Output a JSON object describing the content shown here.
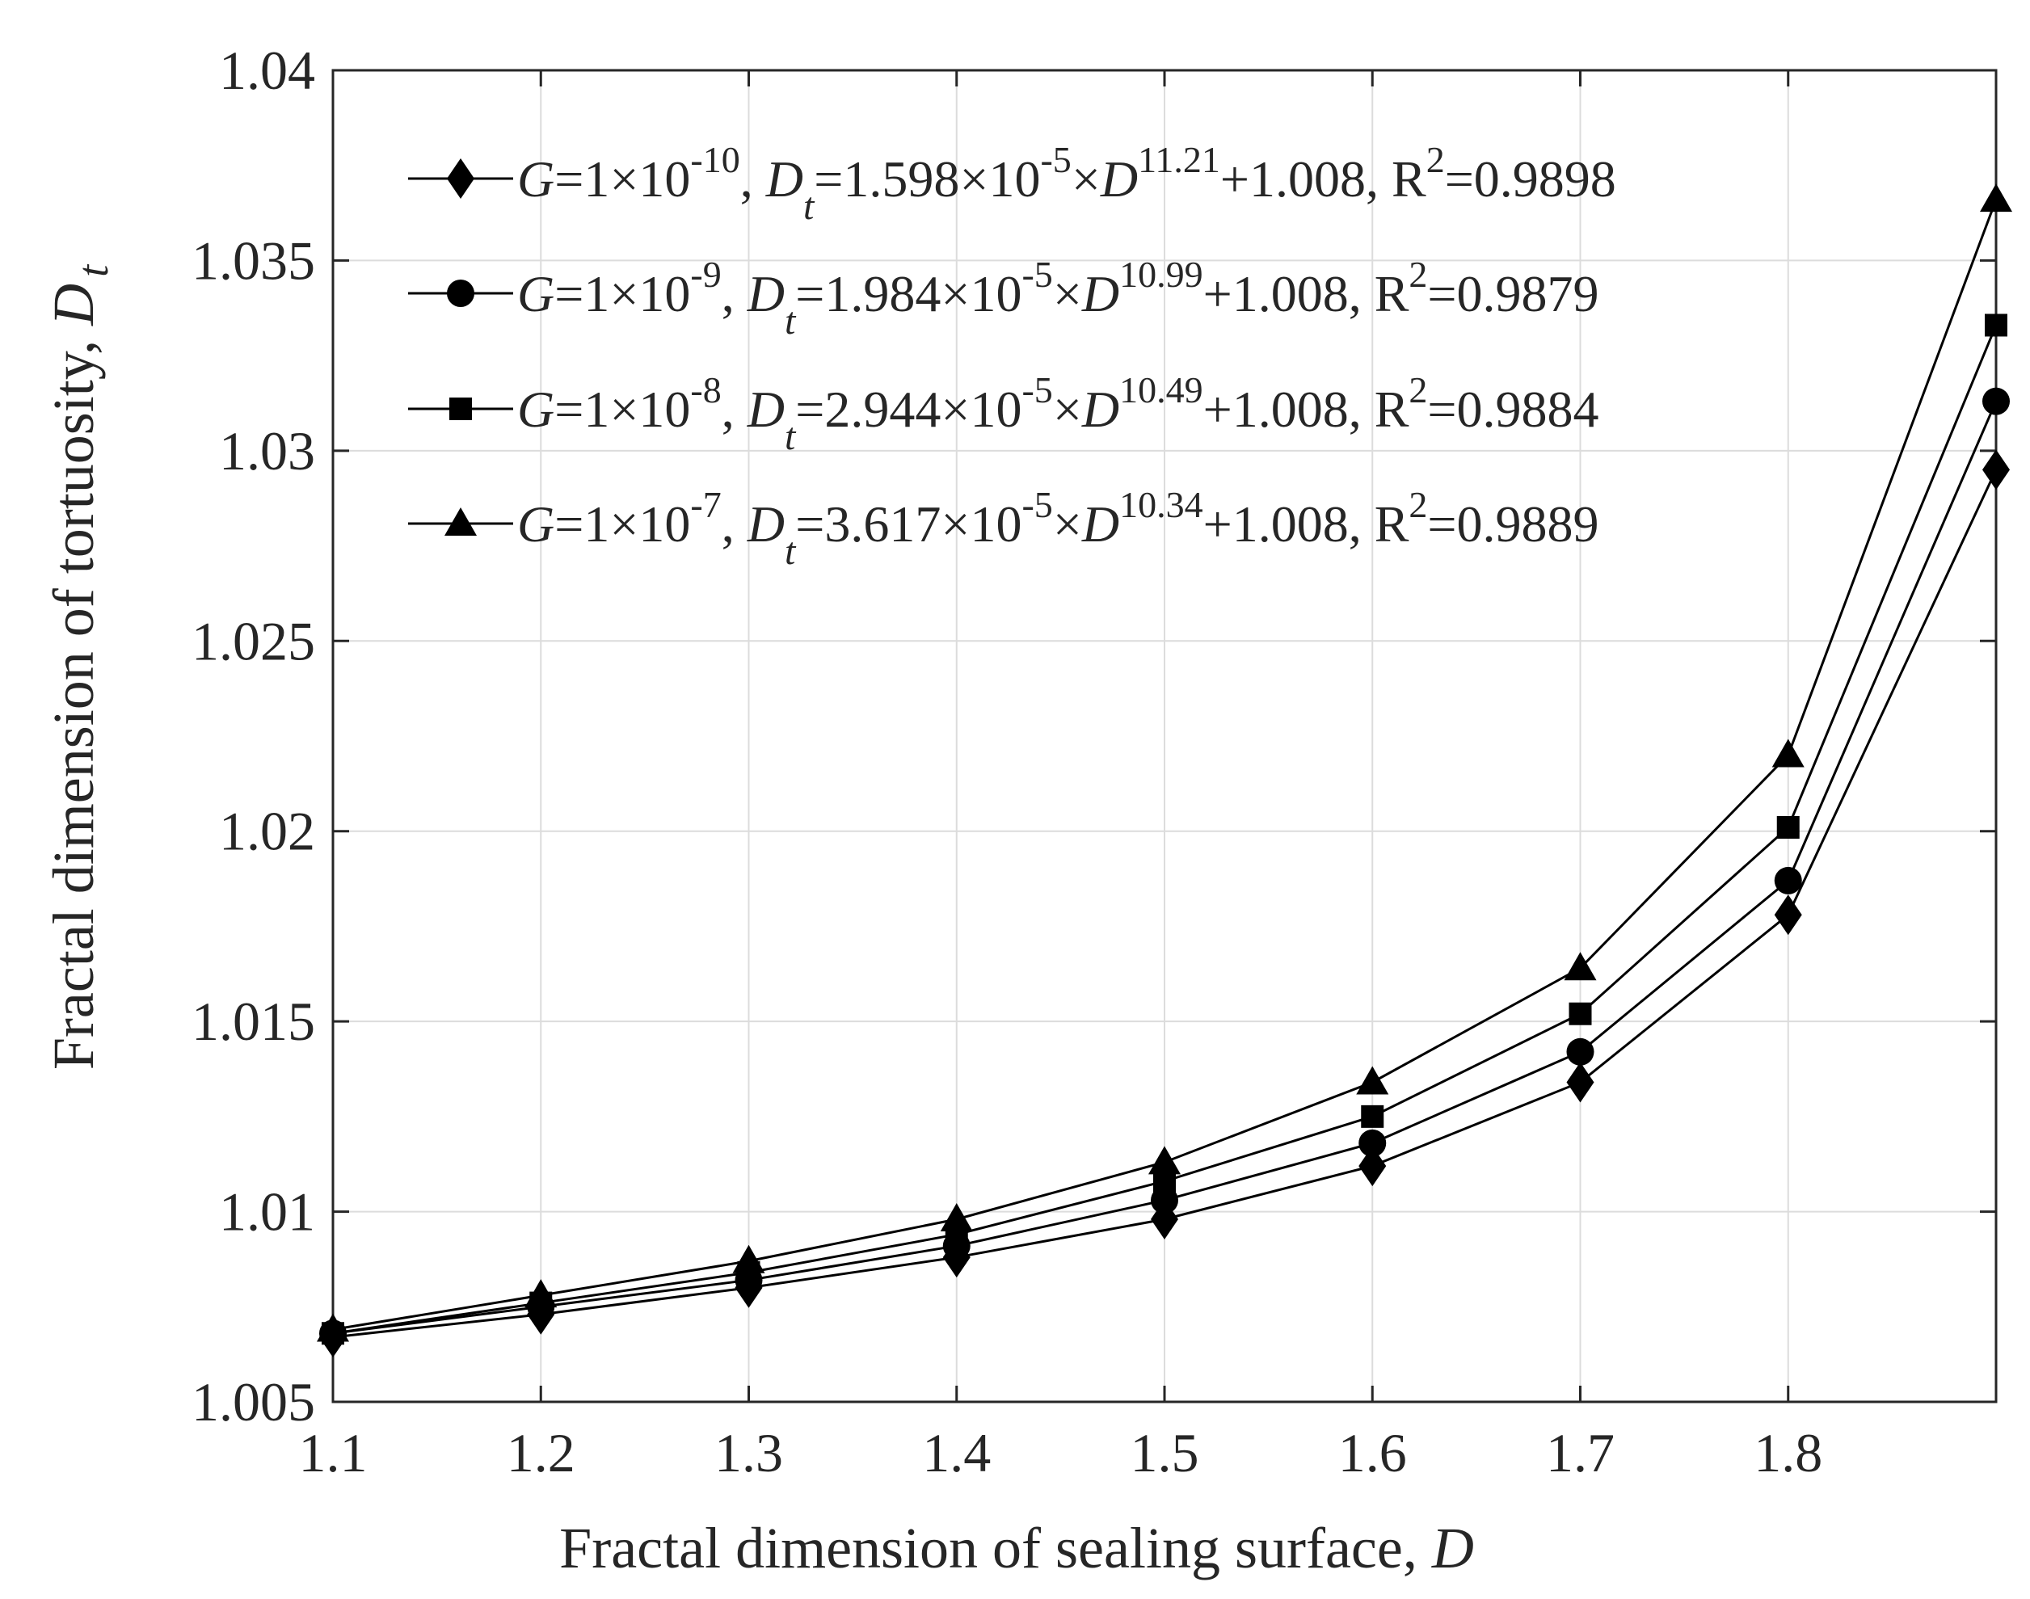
{
  "chart_data": {
    "type": "line",
    "title": "",
    "xlabel": "Fractal dimension of sealing surface, ",
    "xlabel_var": "D",
    "ylabel": "Fractal dimension of tortuosity, ",
    "ylabel_var": "D",
    "ylabel_sub": "t",
    "xlim": [
      1.1,
      1.9
    ],
    "ylim": [
      1.005,
      1.04
    ],
    "grid": true,
    "legend_position": "top-left",
    "x": [
      1.1,
      1.2,
      1.3,
      1.4,
      1.5,
      1.6,
      1.7,
      1.8,
      1.9
    ],
    "x_ticks": [
      1.1,
      1.2,
      1.3,
      1.4,
      1.5,
      1.6,
      1.7,
      1.8
    ],
    "x_tick_labels": [
      "1.1",
      "1.2",
      "1.3",
      "1.4",
      "1.5",
      "1.6",
      "1.7",
      "1.8"
    ],
    "y_ticks": [
      1.005,
      1.01,
      1.015,
      1.02,
      1.025,
      1.03,
      1.035,
      1.04
    ],
    "y_tick_labels": [
      "1.005",
      "1.01",
      "1.015",
      "1.02",
      "1.025",
      "1.03",
      "1.035",
      "1.04"
    ],
    "series": [
      {
        "name": "G=1×10^-10",
        "marker": "diamond",
        "values": [
          1.0067,
          1.0073,
          1.008,
          1.0088,
          1.0098,
          1.0112,
          1.0134,
          1.0178,
          1.0295
        ],
        "legend": {
          "g": "G",
          "eq1": "=1×10",
          "gexp": "-10",
          "comma": ", ",
          "dt": "D",
          "dtsub": "t",
          "eq2": "=1.598×10",
          "cexp": "-5",
          "times": "×",
          "d": "D",
          "dexp": "11.21",
          "rest": "+1.008, R",
          "r2": "2",
          "rval": "=0.9898"
        }
      },
      {
        "name": "G=1×10^-9",
        "marker": "circle",
        "values": [
          1.0068,
          1.0075,
          1.0082,
          1.0091,
          1.0103,
          1.0118,
          1.0142,
          1.0187,
          1.0313
        ],
        "legend": {
          "g": "G",
          "eq1": "=1×10",
          "gexp": "-9",
          "comma": ", ",
          "dt": "D",
          "dtsub": "t",
          "eq2": "=1.984×10",
          "cexp": "-5",
          "times": "×",
          "d": "D",
          "dexp": "10.99",
          "rest": "+1.008, R",
          "r2": "2",
          "rval": "=0.9879"
        }
      },
      {
        "name": "G=1×10^-8",
        "marker": "square",
        "values": [
          1.0068,
          1.0076,
          1.0084,
          1.0094,
          1.0108,
          1.0125,
          1.0152,
          1.0201,
          1.0333
        ],
        "legend": {
          "g": "G",
          "eq1": "=1×10",
          "gexp": "-8",
          "comma": ", ",
          "dt": "D",
          "dtsub": "t",
          "eq2": "=2.944×10",
          "cexp": "-5",
          "times": "×",
          "d": "D",
          "dexp": "10.49",
          "rest": "+1.008, R",
          "r2": "2",
          "rval": "=0.9884"
        }
      },
      {
        "name": "G=1×10^-7",
        "marker": "triangle",
        "values": [
          1.0069,
          1.0078,
          1.0087,
          1.0098,
          1.0113,
          1.0134,
          1.0164,
          1.022,
          1.0366
        ],
        "legend": {
          "g": "G",
          "eq1": "=1×10",
          "gexp": "-7",
          "comma": ", ",
          "dt": "D",
          "dtsub": "t",
          "eq2": "=3.617×10",
          "cexp": "-5",
          "times": "×",
          "d": "D",
          "dexp": "10.34",
          "rest": "+1.008, R",
          "r2": "2",
          "rval": "=0.9889"
        }
      }
    ]
  },
  "colors": {
    "line": "#000000",
    "axis": "#262626",
    "grid": "#dcdcdc",
    "background": "#ffffff"
  }
}
